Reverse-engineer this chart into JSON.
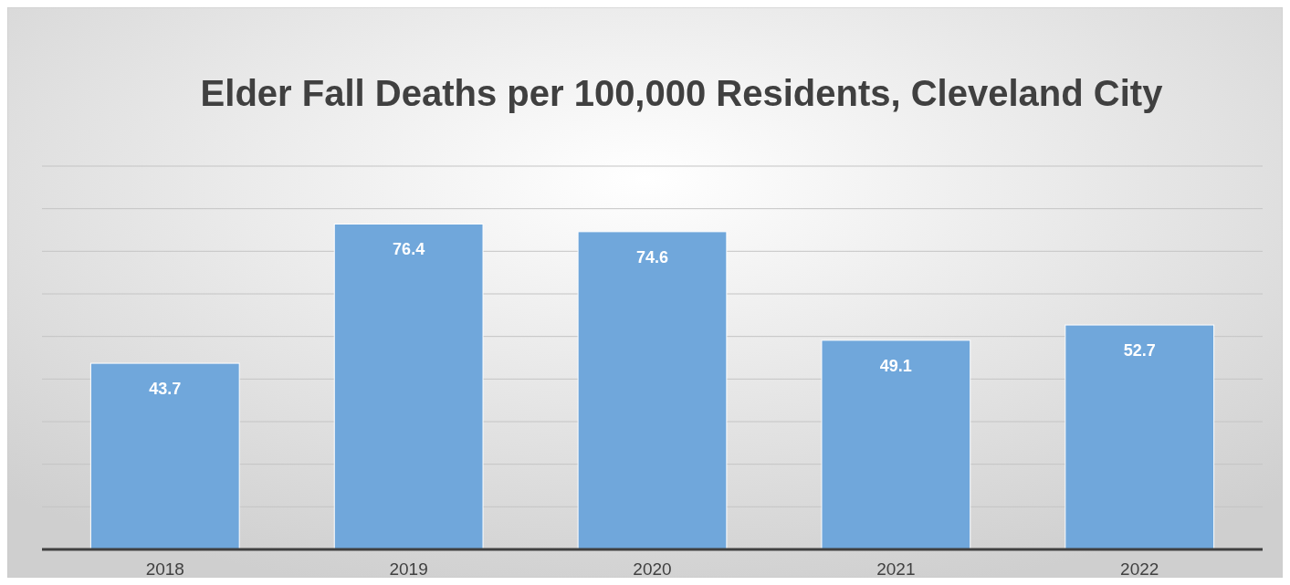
{
  "chart_data": {
    "type": "bar",
    "title": "Elder Fall Deaths per 100,000 Residents, Cleveland City",
    "categories": [
      "2018",
      "2019",
      "2020",
      "2021",
      "2022"
    ],
    "values": [
      43.7,
      76.4,
      74.6,
      49.1,
      52.7
    ],
    "color": "#70a7db",
    "ylim": [
      0,
      90
    ],
    "yticks": [
      {
        "value": 0,
        "label": null
      },
      {
        "value": 10,
        "label": null
      },
      {
        "value": 20,
        "label": null
      },
      {
        "value": 30,
        "label": null
      },
      {
        "value": 40,
        "label": null
      },
      {
        "value": 50,
        "label": null
      },
      {
        "value": 60,
        "label": null
      },
      {
        "value": 70,
        "label": null
      },
      {
        "value": 80,
        "label": null
      },
      {
        "value": 90,
        "label": null
      }
    ],
    "grid": "y",
    "tick_labels": "x",
    "data_labels": true
  }
}
